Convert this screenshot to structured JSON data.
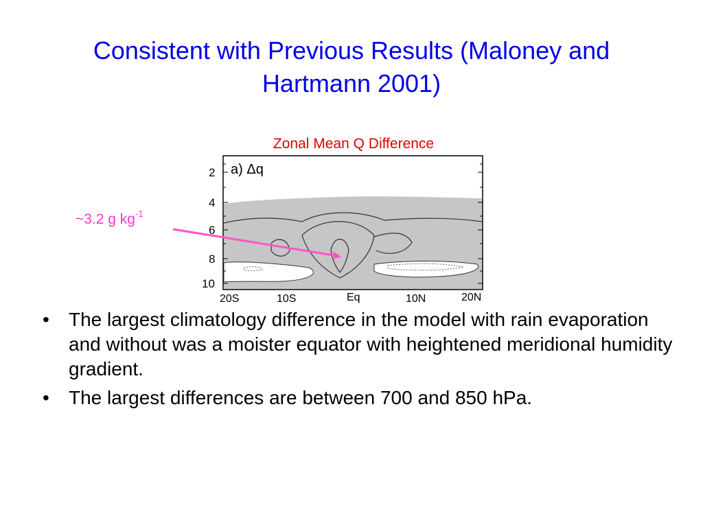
{
  "slide": {
    "title_line1": "Consistent with Previous Results (Maloney and",
    "title_line2": "Hartmann 2001)",
    "chart_caption": "Zonal Mean Q Difference",
    "callout_text": "~3.2 g kg",
    "callout_superscript": "-1",
    "bullet_glyph": "•",
    "bullets": [
      "The largest climatology difference in the model with rain evaporation and without was a moister equator with heightened meridional humidity gradient.",
      "The largest differences are between 700 and 850 hPa."
    ]
  },
  "chart_data": {
    "type": "contour",
    "panel_label": "a) Δq",
    "y_ticks": [
      "2",
      "4",
      "6",
      "8",
      "10"
    ],
    "x_ticks": [
      "20S",
      "10S",
      "Eq",
      "10N",
      "20N"
    ],
    "colors": {
      "title": "#0000e6",
      "caption": "#e00000",
      "callout": "#ff33cc",
      "shading": "#c6c6c6"
    }
  }
}
